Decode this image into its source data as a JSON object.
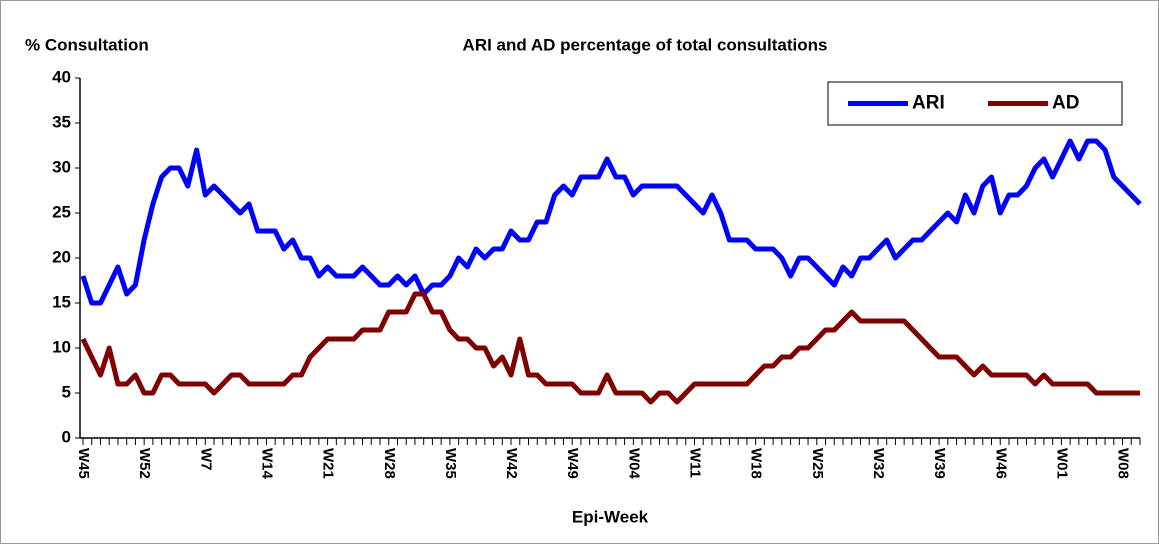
{
  "chart_data": {
    "type": "line",
    "title": "ARI and AD percentage of  total consultations",
    "y_label": "% Consultation",
    "x_label": "Epi-Week",
    "categories": [
      "W45",
      null,
      null,
      null,
      null,
      null,
      null,
      "W52",
      null,
      null,
      null,
      null,
      null,
      null,
      "W7",
      null,
      null,
      null,
      null,
      null,
      null,
      "W14",
      null,
      null,
      null,
      null,
      null,
      null,
      "W21",
      null,
      null,
      null,
      null,
      null,
      null,
      "W28",
      null,
      null,
      null,
      null,
      null,
      null,
      "W35",
      null,
      null,
      null,
      null,
      null,
      null,
      "W42",
      null,
      null,
      null,
      null,
      null,
      null,
      "W49",
      null,
      null,
      null,
      null,
      null,
      null,
      "W04",
      null,
      null,
      null,
      null,
      null,
      null,
      "W11",
      null,
      null,
      null,
      null,
      null,
      null,
      "W18",
      null,
      null,
      null,
      null,
      null,
      null,
      "W25",
      null,
      null,
      null,
      null,
      null,
      null,
      "W32",
      null,
      null,
      null,
      null,
      null,
      null,
      "W39",
      null,
      null,
      null,
      null,
      null,
      null,
      "W46",
      null,
      null,
      null,
      null,
      null,
      null,
      "W01",
      null,
      null,
      null,
      null,
      null,
      null,
      "W08",
      null,
      null
    ],
    "series": [
      {
        "name": "ARI",
        "color": "#0000ff",
        "values": [
          18,
          15,
          15,
          17,
          19,
          16,
          17,
          22,
          26,
          29,
          30,
          30,
          28,
          32,
          27,
          28,
          27,
          26,
          25,
          26,
          23,
          23,
          23,
          21,
          22,
          20,
          20,
          18,
          19,
          18,
          18,
          18,
          19,
          18,
          17,
          17,
          18,
          17,
          18,
          16,
          17,
          17,
          18,
          20,
          19,
          21,
          20,
          21,
          21,
          23,
          22,
          22,
          24,
          24,
          27,
          28,
          27,
          29,
          29,
          29,
          31,
          29,
          29,
          27,
          28,
          28,
          28,
          28,
          28,
          27,
          26,
          25,
          27,
          25,
          22,
          22,
          22,
          21,
          21,
          21,
          20,
          18,
          20,
          20,
          19,
          18,
          17,
          19,
          18,
          20,
          20,
          21,
          22,
          20,
          21,
          22,
          22,
          23,
          24,
          25,
          24,
          27,
          25,
          28,
          29,
          25,
          27,
          27,
          28,
          30,
          31,
          29,
          31,
          33,
          31,
          33,
          33,
          32,
          29,
          28,
          27,
          26
        ]
      },
      {
        "name": "AD",
        "color": "#800000",
        "values": [
          11,
          9,
          7,
          10,
          6,
          6,
          7,
          5,
          5,
          7,
          7,
          6,
          6,
          6,
          6,
          5,
          6,
          7,
          7,
          6,
          6,
          6,
          6,
          6,
          7,
          7,
          9,
          10,
          11,
          11,
          11,
          11,
          12,
          12,
          12,
          14,
          14,
          14,
          16,
          16,
          14,
          14,
          12,
          11,
          11,
          10,
          10,
          8,
          9,
          7,
          11,
          7,
          7,
          6,
          6,
          6,
          6,
          5,
          5,
          5,
          7,
          5,
          5,
          5,
          5,
          4,
          5,
          5,
          4,
          5,
          6,
          6,
          6,
          6,
          6,
          6,
          6,
          7,
          8,
          8,
          9,
          9,
          10,
          10,
          11,
          12,
          12,
          13,
          14,
          13,
          13,
          13,
          13,
          13,
          13,
          12,
          11,
          10,
          9,
          9,
          9,
          8,
          7,
          8,
          7,
          7,
          7,
          7,
          7,
          6,
          7,
          6,
          6,
          6,
          6,
          6,
          5,
          5,
          5,
          5,
          5,
          5
        ]
      }
    ],
    "ylim": [
      0,
      40
    ],
    "yticks": [
      0,
      5,
      10,
      15,
      20,
      25,
      30,
      35,
      40
    ],
    "legend": "upper right",
    "grid": false
  }
}
